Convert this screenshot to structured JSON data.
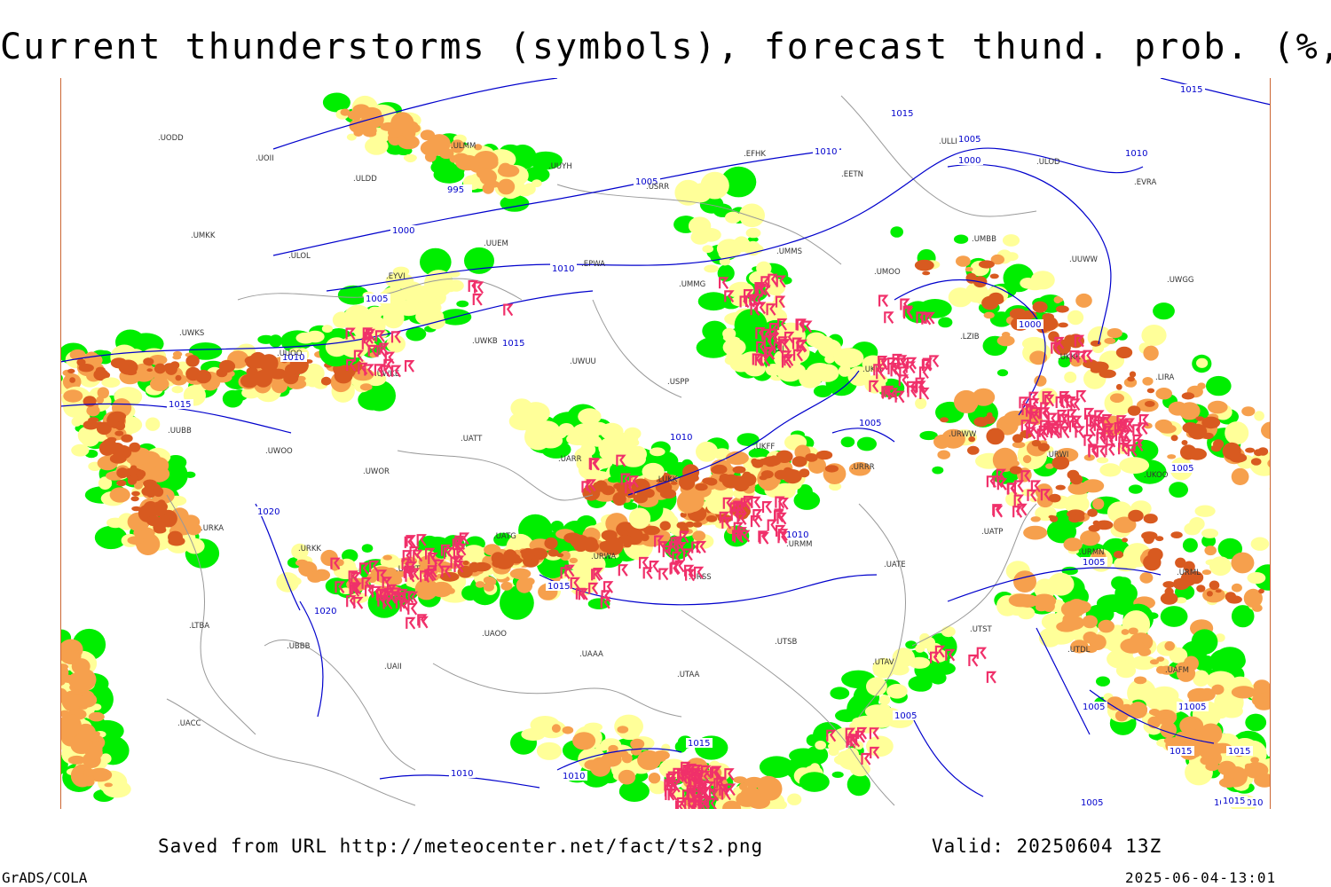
{
  "title": "Current thunderstorms (symbols), forecast thund. prob. (%, shaded)",
  "footer": {
    "url_text": "Saved from URL http://meteocenter.net/fact/ts2.png",
    "valid_text": "Valid: 20250604 13Z",
    "software": "GrADS/COLA",
    "timestamp": "2025-06-04-13:01"
  },
  "colors": {
    "prob_low": "#00ee00",
    "prob_mid": "#ffff99",
    "prob_high": "#f6a04d",
    "prob_very_high": "#d85a20",
    "storm_symbol": "#f0306a",
    "isobar": "#0000cc",
    "coastline": "#999999"
  },
  "isobar_labels": [
    "1015",
    "1015",
    "1010",
    "1005",
    "1000",
    "1010",
    "1005",
    "995",
    "1000",
    "1005",
    "1010",
    "1015",
    "1010",
    "1015",
    "1020",
    "1020",
    "1010",
    "1005",
    "1000",
    "1005",
    "1005",
    "1005",
    "1010",
    "1015",
    "1015",
    "1010",
    "1015",
    "1010",
    "1005",
    "1005",
    "1005",
    "1010",
    "1005",
    "1015",
    "1015",
    "1010"
  ],
  "station_labels": [
    "UODD",
    "UOII",
    "ULDD",
    "ULMM",
    "UUYH",
    "USRR",
    "EFHK",
    "EETN",
    "ULLI",
    "ULOD",
    "EVRA",
    "UMKK",
    "ULOL",
    "EYVI",
    "UUEM",
    "EPWA",
    "UMMG",
    "UMMS",
    "UMOO",
    "UMBB",
    "UUWW",
    "UWGG",
    "UWKS",
    "UUOO",
    "UWKE",
    "UWKB",
    "UWUU",
    "USPP",
    "UKLL",
    "UKLI",
    "LZIB",
    "UKKK",
    "LIRA",
    "UUBB",
    "UWOO",
    "UWOR",
    "UATT",
    "UARR",
    "LUKK",
    "UKFF",
    "URRR",
    "URWW",
    "URWI",
    "UKOO",
    "URKA",
    "URKK",
    "URMT",
    "UATG",
    "URWA",
    "URSS",
    "URMM",
    "UATE",
    "UATP",
    "URMN",
    "URML",
    "LTBA",
    "UBBB",
    "UAII",
    "UAOO",
    "UAAA",
    "UTAA",
    "UTSB",
    "UTAV",
    "UTST",
    "UTDL",
    "UAFM",
    "UACC"
  ]
}
